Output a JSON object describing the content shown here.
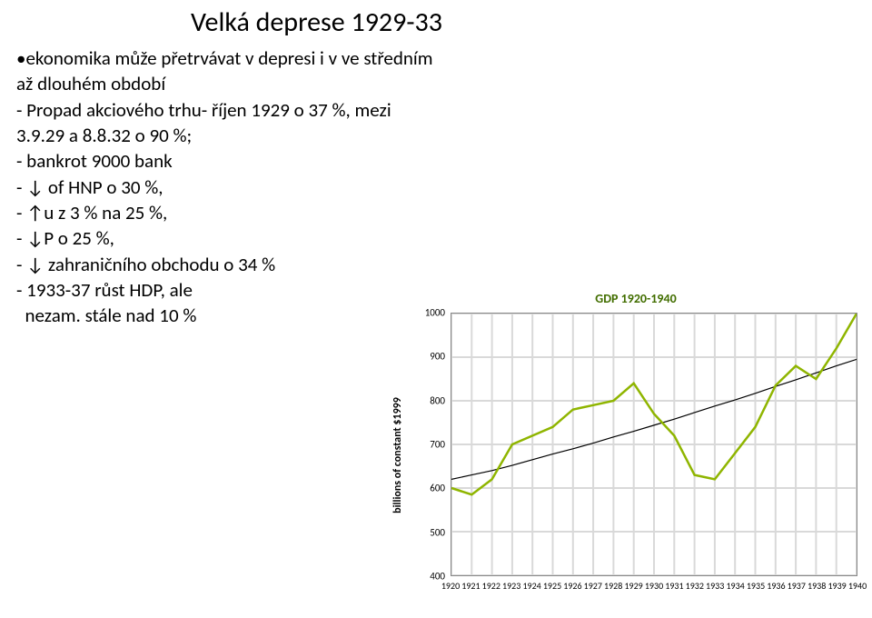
{
  "title": "Velká deprese 1929-33",
  "top_bullet": "ekonomika může přetrvávat v depresi i v ve středním až dlouhém období",
  "bullets": [
    "- Propad akciového trhu- říjen 1929 o 37 %, mezi 3.9.29 a 8.8.32 o 90 %;",
    "- bankrot 9000 bank",
    "- ↓ of HNP o 30 %,",
    "- ↑u z 3 % na 25 %,",
    "- ↓P o 25 %,",
    "- ↓ zahraničního obchodu o 34 %",
    "- 1933-37 růst HDP, ale",
    "  nezam. stále nad 10 %"
  ],
  "chart": {
    "title": "GDP 1920-1940",
    "ylabel": "billions of constant $1999",
    "ylim": [
      400,
      1000
    ],
    "ytick_step": 100,
    "x_values": [
      1920,
      1921,
      1922,
      1923,
      1924,
      1925,
      1926,
      1927,
      1928,
      1929,
      1930,
      1931,
      1932,
      1933,
      1934,
      1935,
      1936,
      1937,
      1938,
      1939,
      1940
    ],
    "gdp_series": [
      600,
      585,
      620,
      700,
      720,
      740,
      780,
      790,
      800,
      840,
      770,
      720,
      630,
      620,
      680,
      740,
      835,
      880,
      850,
      920,
      1000
    ],
    "trend_series": [
      620,
      630,
      640,
      652,
      665,
      678,
      690,
      703,
      717,
      730,
      744,
      758,
      773,
      788,
      802,
      817,
      833,
      848,
      864,
      880,
      895
    ],
    "line_color": "#8fb500",
    "trend_color": "#000000",
    "line_width_gdp": 2.5,
    "line_width_trend": 1.2,
    "grid_color": "#d9d9d9",
    "border_color": "#888888",
    "background": "#ffffff",
    "text_color": "#000000",
    "title_color": "#426e00",
    "title_fontsize": 14,
    "tick_fontsize": 11,
    "label_fontsize": 12
  }
}
